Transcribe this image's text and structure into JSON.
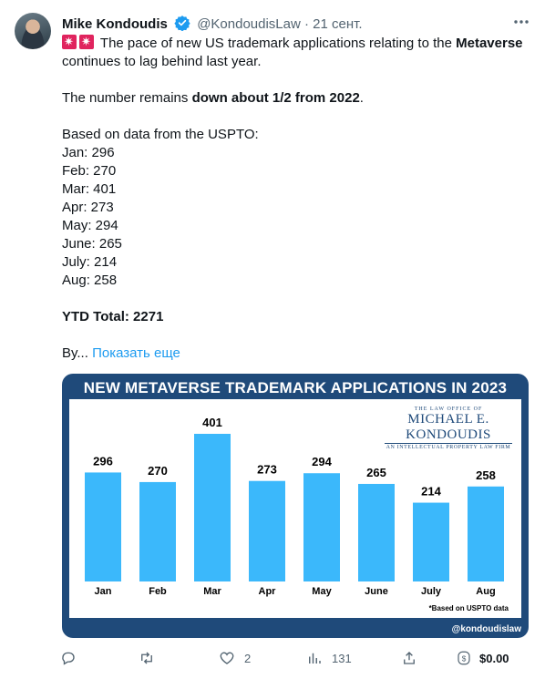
{
  "author": {
    "name": "Mike Kondoudis",
    "handle": "@KondoudisLaw",
    "separator": "·",
    "date": "21 сент."
  },
  "text": {
    "intro": "The pace of new US trademark applications relating to the",
    "intro_bold": "Metaverse",
    "intro_end": "continues to lag behind last year.",
    "remains_pre": "The number remains",
    "remains_bold": "down about 1/2 from 2022",
    "remains_end": ".",
    "source": "Based on data from the USPTO:",
    "months": [
      "Jan: 296",
      "Feb: 270",
      "Mar: 401",
      "Apr: 273",
      "May: 294",
      "June: 265",
      "July: 214",
      "Aug: 258"
    ],
    "ytd": "YTD Total: 2271",
    "truncated": "By...",
    "show_more": "Показать еще"
  },
  "card": {
    "handle": "@kondoudislaw",
    "logo_small": "THE LAW OFFICE OF",
    "logo_big": "MICHAEL E. KONDOUDIS",
    "logo_tag": "AN INTELLECTUAL PROPERTY LAW FIRM",
    "note": "*Based on USPTO data"
  },
  "chart_data": {
    "type": "bar",
    "title": "NEW METAVERSE TRADEMARK APPLICATIONS IN 2023",
    "categories": [
      "Jan",
      "Feb",
      "Mar",
      "Apr",
      "May",
      "June",
      "July",
      "Aug"
    ],
    "values": [
      296,
      270,
      401,
      273,
      294,
      265,
      214,
      258
    ],
    "ylim": [
      0,
      401
    ],
    "grid": false,
    "bar_color": "#3bb8fb"
  },
  "actions": {
    "reply": "",
    "retweet": "",
    "likes": "2",
    "views": "131",
    "share": "",
    "tip": "$0.00"
  },
  "colors": {
    "accent": "#1d9bf0",
    "muted": "#536471",
    "card_bg": "#1f4a7a"
  }
}
